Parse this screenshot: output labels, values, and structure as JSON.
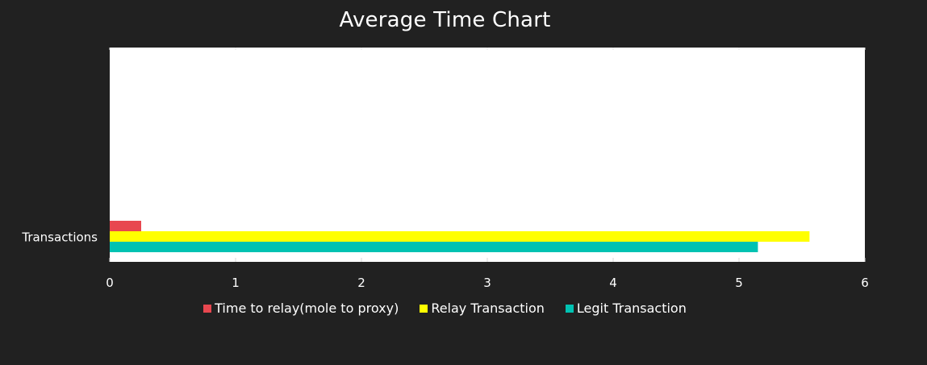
{
  "chart_data": {
    "type": "bar",
    "orientation": "horizontal",
    "title": "Average Time Chart",
    "categories": [
      "Transactions"
    ],
    "xlim": [
      0,
      6
    ],
    "x_ticks": [
      "0",
      "1",
      "2",
      "3",
      "4",
      "5",
      "6"
    ],
    "grid": false,
    "legend_position": "bottom",
    "series": [
      {
        "name": "Time to relay(mole to proxy)",
        "values": [
          0.25
        ],
        "color": "#e8474f"
      },
      {
        "name": "Relay Transaction",
        "values": [
          5.56
        ],
        "color": "#ffff00"
      },
      {
        "name": "Legit Transaction",
        "values": [
          5.15
        ],
        "color": "#00c2b2"
      }
    ]
  },
  "colors": {
    "background": "#212121",
    "plot_area": "#ffffff",
    "text": "#ffffff"
  }
}
